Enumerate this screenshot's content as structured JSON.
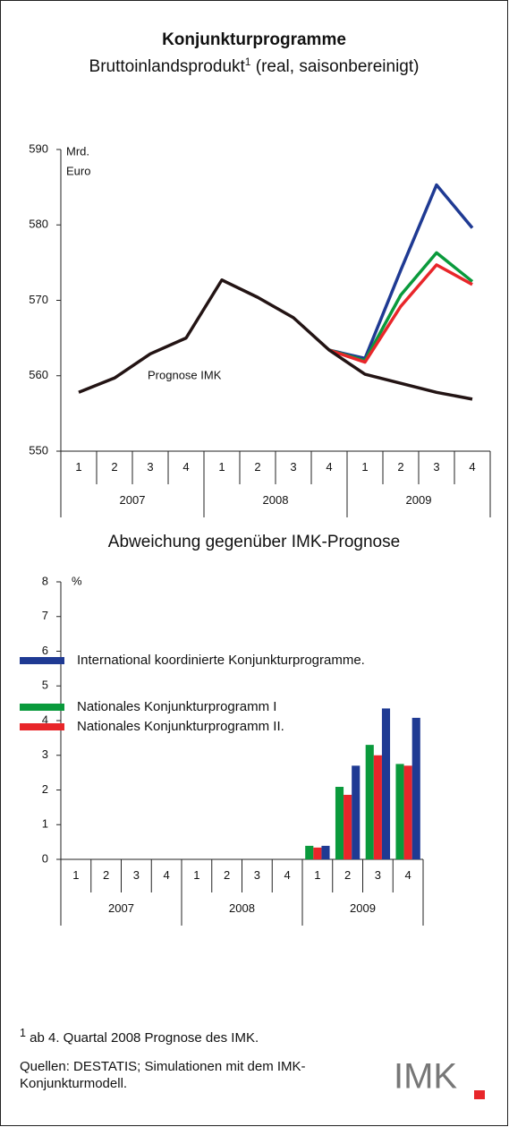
{
  "chart_data": [
    {
      "type": "line",
      "title": "Konjunkturprogramme",
      "subtitle": "Bruttoinlandsprodukt",
      "subtitle_note": "1",
      "subtitle_rest": " (real, saisonbereinigt)",
      "ylabel": [
        "Mrd.",
        "Euro"
      ],
      "categories": [
        "1",
        "2",
        "3",
        "4",
        "1",
        "2",
        "3",
        "4",
        "1",
        "2",
        "3",
        "4"
      ],
      "years": [
        "2007",
        "2008",
        "2009"
      ],
      "ylim": [
        550,
        590
      ],
      "yticks": [
        550,
        560,
        570,
        580,
        590
      ],
      "annotation": "Prognose IMK",
      "series": [
        {
          "color": "#1f3a93",
          "values": [
            null,
            null,
            null,
            null,
            null,
            null,
            null,
            563.4,
            562.3,
            574.0,
            585.3,
            579.6
          ]
        },
        {
          "color": "#0a9a3c",
          "values": [
            null,
            null,
            null,
            null,
            null,
            null,
            null,
            563.4,
            562.0,
            570.7,
            576.3,
            572.5
          ]
        },
        {
          "color": "#e8262a",
          "values": [
            null,
            null,
            null,
            null,
            null,
            null,
            null,
            563.4,
            561.8,
            569.2,
            574.7,
            572.1
          ]
        },
        {
          "color": "#231414",
          "values": [
            557.8,
            559.7,
            562.9,
            565.0,
            572.7,
            570.4,
            567.7,
            563.4,
            560.2,
            559.0,
            557.8,
            556.9
          ]
        }
      ]
    },
    {
      "type": "bar",
      "title": "Abweichung gegenüber IMK-Prognose",
      "ylabel": "%",
      "categories": [
        "1",
        "2",
        "3",
        "4",
        "1",
        "2",
        "3",
        "4",
        "1",
        "2",
        "3",
        "4"
      ],
      "years": [
        "2007",
        "2008",
        "2009"
      ],
      "ylim": [
        0,
        8
      ],
      "yticks": [
        0,
        1,
        2,
        3,
        4,
        5,
        6,
        7,
        8
      ],
      "series": [
        {
          "name": "Nationales Konjunkturprogramm I",
          "color": "#0a9a3c",
          "values": [
            null,
            null,
            null,
            null,
            null,
            null,
            null,
            null,
            0.39,
            2.09,
            3.3,
            2.75
          ]
        },
        {
          "name": "Nationales Konjunkturprogramm II.",
          "color": "#e8262a",
          "values": [
            null,
            null,
            null,
            null,
            null,
            null,
            null,
            null,
            0.34,
            1.86,
            3.0,
            2.7
          ]
        },
        {
          "name": "International koordinierte Konjunkturprogramme.",
          "color": "#1f3a93",
          "values": [
            null,
            null,
            null,
            null,
            null,
            null,
            null,
            null,
            0.39,
            2.7,
            4.35,
            4.08
          ]
        }
      ]
    }
  ],
  "footnote_mark": "1",
  "footnote": "ab 4. Quartal 2008 Prognose des IMK.",
  "sources": "Quellen: DESTATIS; Simulationen mit dem IMK-Konjunkturmodell.",
  "logo": "IMK"
}
